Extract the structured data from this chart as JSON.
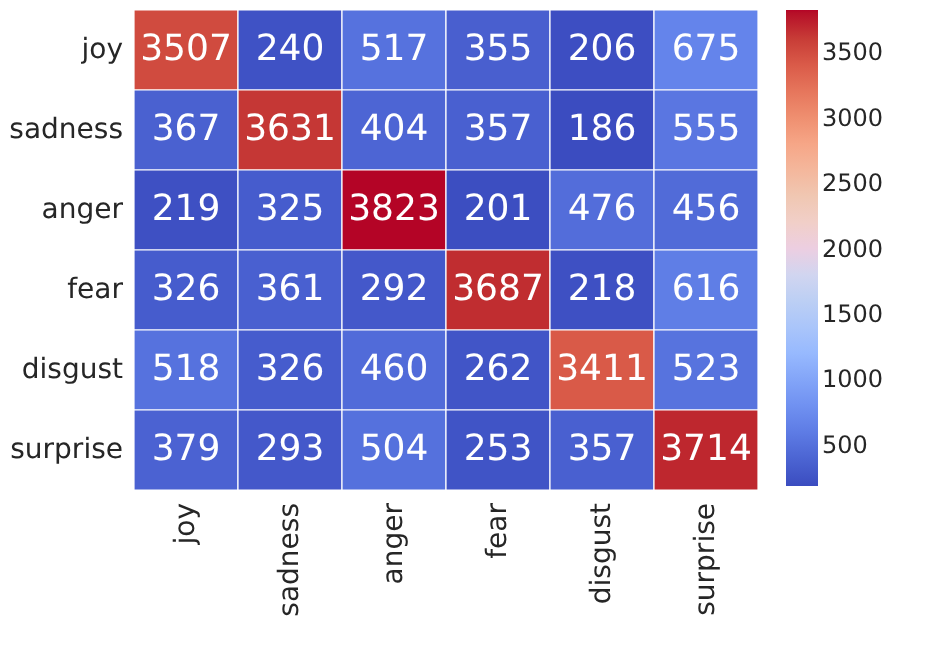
{
  "chart_data": {
    "type": "heatmap",
    "categories": [
      "joy",
      "sadness",
      "anger",
      "fear",
      "disgust",
      "surprise"
    ],
    "y_categories": [
      "joy",
      "sadness",
      "anger",
      "fear",
      "disgust",
      "surprise"
    ],
    "cells": [
      [
        3507,
        240,
        517,
        355,
        206,
        675
      ],
      [
        367,
        3631,
        404,
        357,
        186,
        555
      ],
      [
        219,
        325,
        3823,
        201,
        476,
        456
      ],
      [
        326,
        361,
        292,
        3687,
        218,
        616
      ],
      [
        518,
        326,
        460,
        262,
        3411,
        523
      ],
      [
        379,
        293,
        504,
        253,
        357,
        3714
      ]
    ],
    "clim": [
      186,
      3823
    ],
    "cticks": [
      500,
      1000,
      1500,
      2000,
      2500,
      3000,
      3500
    ],
    "data_labels": true
  }
}
